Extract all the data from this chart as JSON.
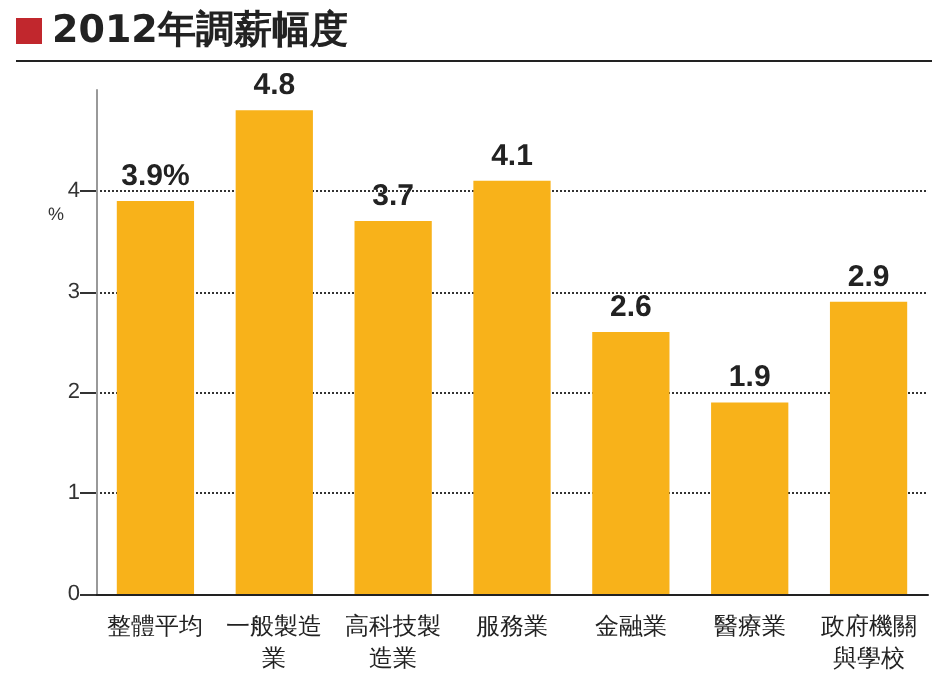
{
  "chart_data": {
    "type": "bar",
    "title": "2012年調薪幅度",
    "ylabel": "%",
    "categories": [
      "整體平均",
      "一般製造業",
      "高科技製造業",
      "服務業",
      "金融業",
      "醫療業",
      "政府機關與學校"
    ],
    "values": [
      3.9,
      4.8,
      3.7,
      4.1,
      2.6,
      1.9,
      2.9
    ],
    "value_labels": [
      "3.9%",
      "4.8",
      "3.7",
      "4.1",
      "2.6",
      "1.9",
      "2.9"
    ],
    "color": "#f8b21a",
    "ylim": [
      0,
      5
    ],
    "yticks": [
      0,
      1,
      2,
      3,
      4
    ],
    "grid": "y"
  }
}
